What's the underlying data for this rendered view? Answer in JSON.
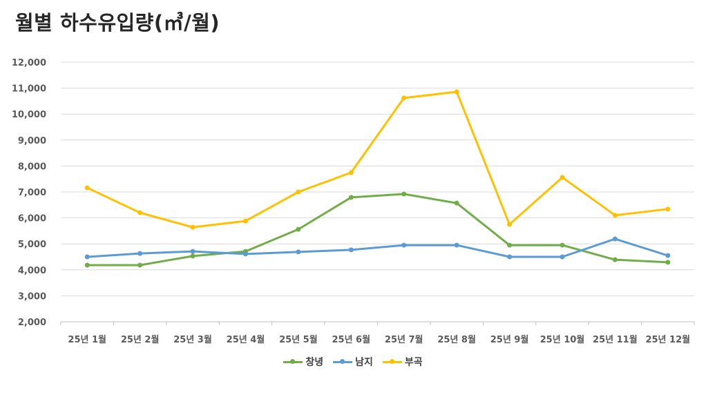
{
  "chart_data": {
    "type": "line",
    "title": "월별 하수유입량(㎥/월)",
    "xlabel": "",
    "ylabel": "",
    "ylim": [
      2000,
      12000
    ],
    "yticks": [
      2000,
      3000,
      4000,
      5000,
      6000,
      7000,
      8000,
      9000,
      10000,
      11000,
      12000
    ],
    "ytick_labels": [
      "2,000",
      "3,000",
      "4,000",
      "5,000",
      "6,000",
      "7,000",
      "8,000",
      "9,000",
      "10,000",
      "11,000",
      "12,000"
    ],
    "grid": true,
    "legend_position": "bottom",
    "categories": [
      "25년 1월",
      "25년 2월",
      "25년 3월",
      "25년 4월",
      "25년 5월",
      "25년 6월",
      "25년 7월",
      "25년 8월",
      "25년 9월",
      "25년 10월",
      "25년 11월",
      "25년 12월"
    ],
    "series": [
      {
        "name": "창녕",
        "color": "#70AD47",
        "values": [
          4180,
          4180,
          4530,
          4710,
          5560,
          6790,
          6920,
          6570,
          4950,
          4950,
          4390,
          4290
        ]
      },
      {
        "name": "남지",
        "color": "#5B9BD5",
        "values": [
          4500,
          4630,
          4710,
          4610,
          4690,
          4770,
          4950,
          4950,
          4500,
          4500,
          5190,
          4550
        ]
      },
      {
        "name": "부곡",
        "color": "#FFC000",
        "values": [
          7160,
          6200,
          5640,
          5880,
          7000,
          7745,
          10620,
          10856,
          5750,
          7560,
          6100,
          6340
        ]
      }
    ]
  }
}
